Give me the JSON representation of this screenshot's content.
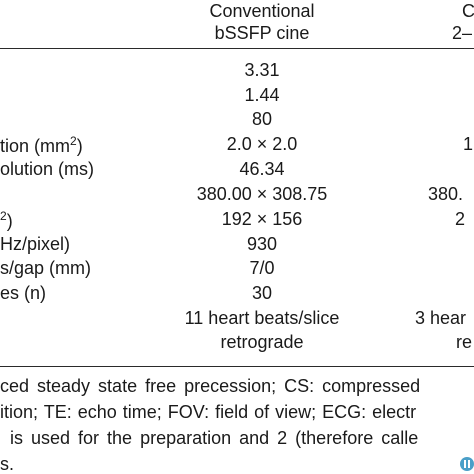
{
  "header": {
    "col1_line1": "Conventional",
    "col1_line2": "bSSFP cine",
    "col2_line1": "C",
    "col2_line2": "2–"
  },
  "rows": [
    {
      "label": "",
      "col1": "3.31",
      "col2": ""
    },
    {
      "label": "",
      "col1": "1.44",
      "col2": ""
    },
    {
      "label": "",
      "col1": "80",
      "col2": ""
    },
    {
      "label_pre": "tion (mm",
      "label_sup": "2",
      "label_post": ")",
      "col1": "2.0 × 2.0",
      "col2": "1"
    },
    {
      "label": "olution (ms)",
      "col1": "46.34",
      "col2": ""
    },
    {
      "label": "",
      "col1": "380.00 × 308.75",
      "col2": "380."
    },
    {
      "label_sup": "2",
      "label_post": ")",
      "col1": "192 × 156",
      "col2": "2"
    },
    {
      "label": "Hz/pixel)",
      "col1": "930",
      "col2": ""
    },
    {
      "label": "s/gap (mm)",
      "col1": "7/0",
      "col2": ""
    },
    {
      "label": "es (n)",
      "col1": "30",
      "col2": ""
    },
    {
      "label": "",
      "col1": "11 heart beats/slice",
      "col2": "3 hear"
    },
    {
      "label": "",
      "col1": "retrograde",
      "col2": "re"
    }
  ],
  "footnote": {
    "line1": "ced steady state free precession; CS: compressed",
    "line2": "ition; TE: echo time; FOV: field of view; ECG: electr",
    "line3": "is used for the preparation and 2 (therefore calle",
    "line4": "s."
  }
}
